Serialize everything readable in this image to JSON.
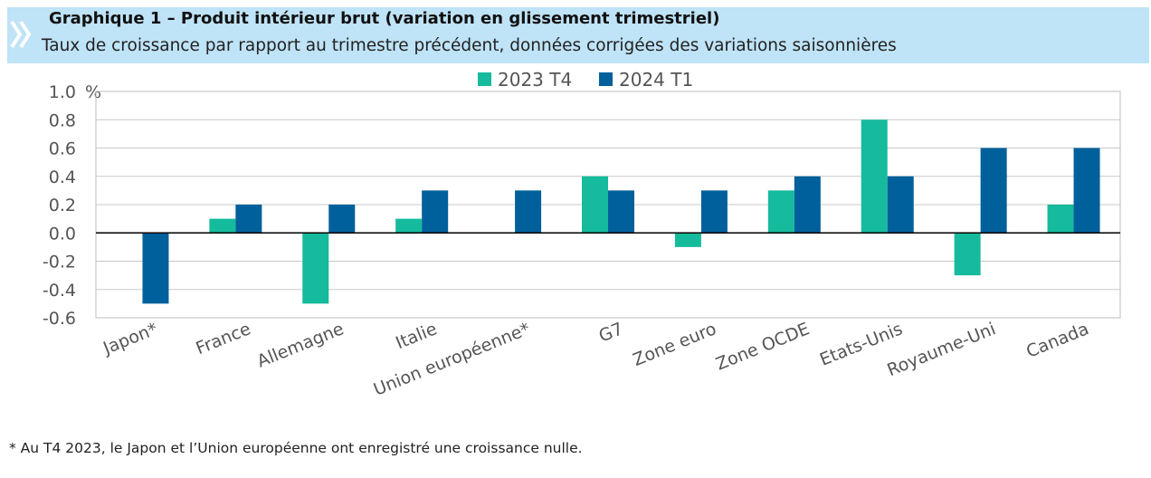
{
  "header": {
    "title": "Graphique 1 – Produit intérieur brut (variation en glissement trimestriel)",
    "subtitle": "Taux de croissance par rapport au trimestre précédent, données corrigées des variations saisonnières",
    "icon": "chevron-double-right-icon"
  },
  "footnote": "* Au T4 2023, le Japon et l’Union européenne ont enregistré une croissance nulle.",
  "colors": {
    "banner": "#bfe3f7",
    "series1": "#15bb9c",
    "series2": "#00609b",
    "grid": "#c8c8c8"
  },
  "chart_data": {
    "type": "bar",
    "ylabel": "%",
    "ylim": [
      -0.6,
      1.0
    ],
    "yticks": [
      "1.0",
      "0.8",
      "0.6",
      "0.4",
      "0.2",
      "0.0",
      "-0.2",
      "-0.4",
      "-0.6"
    ],
    "grid": true,
    "legend_position": "top-center",
    "categories": [
      "Japon*",
      "France",
      "Allemagne",
      "Italie",
      "Union européenne*",
      "G7",
      "Zone euro",
      "Zone OCDE",
      "Etats-Unis",
      "Royaume-Uni",
      "Canada"
    ],
    "series": [
      {
        "name": "2023 T4",
        "values": [
          0.0,
          0.1,
          -0.5,
          0.1,
          0.0,
          0.4,
          -0.1,
          0.3,
          0.8,
          -0.3,
          0.2
        ]
      },
      {
        "name": "2024 T1",
        "values": [
          -0.5,
          0.2,
          0.2,
          0.3,
          0.3,
          0.3,
          0.3,
          0.4,
          0.4,
          0.6,
          0.6
        ]
      }
    ]
  }
}
